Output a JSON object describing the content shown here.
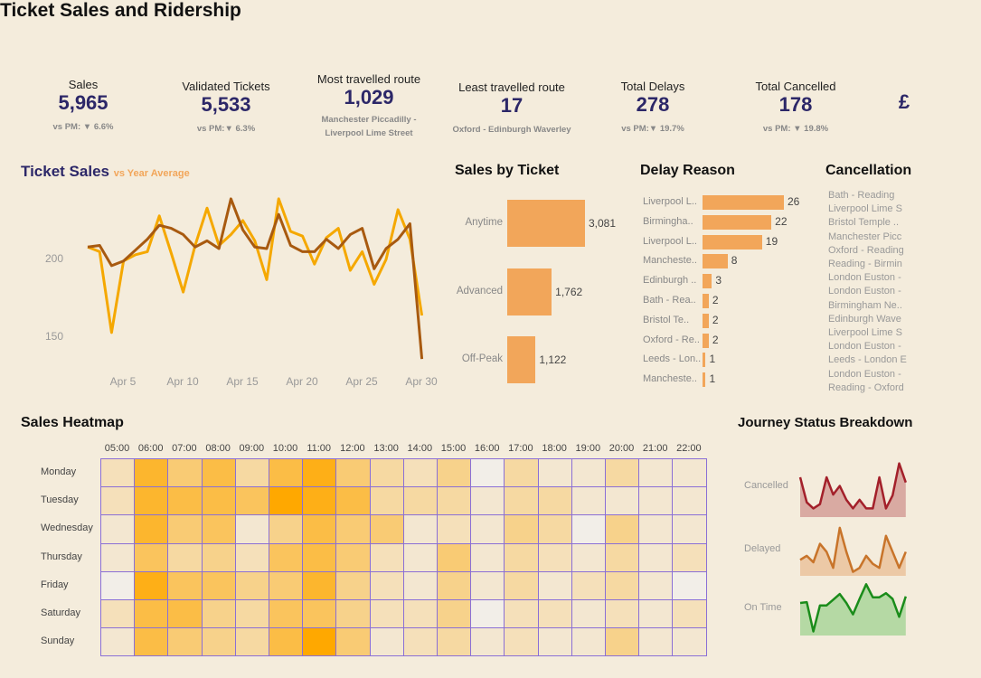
{
  "title": "Ticket Sales and Ridership",
  "kpis": [
    {
      "label": "Sales",
      "value": "5,965",
      "sub": "vs PM: ▼ 6.6%"
    },
    {
      "label": "Validated Tickets",
      "value": "5,533",
      "sub": "vs PM:▼ 6.3%"
    },
    {
      "label": "Most travelled route",
      "value": "1,029",
      "sub": "Manchester Piccadilly - Liverpool Lime Street"
    },
    {
      "label": "Least travelled route",
      "value": "17",
      "sub": "Oxford - Edinburgh Waverley"
    },
    {
      "label": "Total Delays",
      "value": "278",
      "sub": "vs PM:▼ 19.7%"
    },
    {
      "label": "Total Cancelled",
      "value": "178",
      "sub": "vs PM: ▼ 19.8%"
    },
    {
      "label": "",
      "value": "£",
      "sub": ""
    }
  ],
  "colors": {
    "navy": "#2c2768",
    "bar": "#f2a65a",
    "sales_line": "#a85a10",
    "avg_line": "#f5a800",
    "cancelled": "#a3202a",
    "delayed": "#c8742a",
    "on_time": "#1a8c1a"
  },
  "chart_data": [
    {
      "type": "line",
      "title": "Ticket Sales",
      "subtitle": "vs Year Average",
      "xticks": [
        "Apr 5",
        "Apr 10",
        "Apr 15",
        "Apr 20",
        "Apr 25",
        "Apr 30"
      ],
      "yticks": [
        150,
        200
      ],
      "x": [
        "Apr 2",
        "Apr 3",
        "Apr 4",
        "Apr 5",
        "Apr 6",
        "Apr 7",
        "Apr 8",
        "Apr 9",
        "Apr 10",
        "Apr 11",
        "Apr 12",
        "Apr 13",
        "Apr 14",
        "Apr 15",
        "Apr 16",
        "Apr 17",
        "Apr 18",
        "Apr 19",
        "Apr 20",
        "Apr 21",
        "Apr 22",
        "Apr 23",
        "Apr 24",
        "Apr 25",
        "Apr 26",
        "Apr 27",
        "Apr 28",
        "Apr 29",
        "Apr 30"
      ],
      "series": [
        {
          "color": "#f5a800",
          "values": [
            208,
            205,
            153,
            199,
            203,
            205,
            228,
            204,
            179,
            209,
            233,
            209,
            216,
            225,
            212,
            187,
            239,
            218,
            215,
            197,
            214,
            220,
            193,
            205,
            184,
            200,
            232,
            213,
            164
          ]
        },
        {
          "color": "#a85a10",
          "values": [
            208,
            209,
            196,
            199,
            206,
            213,
            222,
            220,
            216,
            208,
            212,
            207,
            239,
            219,
            208,
            207,
            229,
            209,
            205,
            205,
            213,
            207,
            216,
            220,
            194,
            207,
            213,
            223,
            136
          ]
        }
      ]
    },
    {
      "type": "bar",
      "title": "Sales by Ticket",
      "categories": [
        "Anytime",
        "Advanced",
        "Off-Peak"
      ],
      "values": [
        3081,
        1762,
        1122
      ],
      "labels": [
        "3,081",
        "1,762",
        "1,122"
      ]
    },
    {
      "type": "bar",
      "title": "Delay Reason",
      "categories": [
        "Liverpool L..",
        "Birmingha..",
        "Liverpool L..",
        "Mancheste..",
        "Edinburgh ..",
        "Bath - Rea..",
        "Bristol Te..",
        "Oxford - Re..",
        "Leeds - Lon..",
        "Mancheste.."
      ],
      "values": [
        26,
        22,
        19,
        8,
        3,
        2,
        2,
        2,
        1,
        1
      ]
    },
    {
      "type": "table",
      "title": "Cancellation",
      "rows": [
        "Bath - Reading",
        "Liverpool Lime S",
        "Bristol Temple ..",
        "Manchester Picc",
        "Oxford - Reading",
        "Reading - Birmin",
        "London Euston -",
        "London Euston -",
        "Birmingham Ne..",
        "Edinburgh Wave",
        "Liverpool Lime S",
        "London Euston -",
        "Leeds - London E",
        "London Euston -",
        "Reading - Oxford"
      ]
    },
    {
      "type": "heatmap",
      "title": "Sales Heatmap",
      "columns": [
        "05:00",
        "06:00",
        "07:00",
        "08:00",
        "09:00",
        "10:00",
        "11:00",
        "12:00",
        "13:00",
        "14:00",
        "15:00",
        "16:00",
        "17:00",
        "18:00",
        "19:00",
        "20:00",
        "21:00",
        "22:00"
      ],
      "rows": [
        "Monday",
        "Tuesday",
        "Wednesday",
        "Thursday",
        "Friday",
        "Saturday",
        "Sunday"
      ],
      "intensity_0_to_10": [
        [
          2,
          8,
          5,
          7,
          3,
          7,
          9,
          5,
          3,
          2,
          4,
          0,
          3,
          1,
          1,
          3,
          1,
          1
        ],
        [
          2,
          8,
          7,
          7,
          6,
          10,
          9,
          7,
          3,
          3,
          3,
          1,
          3,
          3,
          1,
          1,
          1,
          1
        ],
        [
          1,
          8,
          5,
          6,
          1,
          4,
          7,
          5,
          5,
          1,
          2,
          1,
          4,
          3,
          0,
          4,
          1,
          1
        ],
        [
          1,
          6,
          3,
          4,
          2,
          6,
          7,
          5,
          2,
          1,
          5,
          1,
          3,
          2,
          1,
          3,
          1,
          2
        ],
        [
          0,
          9,
          6,
          6,
          4,
          5,
          8,
          4,
          2,
          1,
          4,
          1,
          3,
          1,
          2,
          3,
          1,
          0
        ],
        [
          2,
          7,
          7,
          4,
          3,
          6,
          6,
          4,
          2,
          2,
          4,
          0,
          2,
          2,
          1,
          2,
          1,
          2
        ],
        [
          1,
          7,
          5,
          4,
          3,
          7,
          10,
          5,
          1,
          2,
          3,
          1,
          2,
          1,
          1,
          4,
          1,
          1
        ]
      ]
    },
    {
      "type": "area",
      "title": "Journey Status Breakdown",
      "series": [
        {
          "name": "Cancelled",
          "color": "#a3202a",
          "fill": "#d9aaa2",
          "values": [
            46,
            17,
            10,
            15,
            46,
            26,
            36,
            20,
            10,
            20,
            10,
            10,
            46,
            10,
            25,
            62,
            40
          ]
        },
        {
          "name": "Delayed",
          "color": "#c8742a",
          "fill": "#ecc9a6",
          "values": [
            20,
            25,
            17,
            40,
            30,
            10,
            60,
            30,
            5,
            10,
            25,
            15,
            10,
            50,
            30,
            10,
            30
          ]
        },
        {
          "name": "On Time",
          "color": "#1a8c1a",
          "fill": "#b5d9a4",
          "values": [
            40,
            41,
            5,
            37,
            37,
            44,
            51,
            40,
            26,
            45,
            63,
            47,
            47,
            52,
            45,
            23,
            48
          ]
        }
      ]
    }
  ]
}
